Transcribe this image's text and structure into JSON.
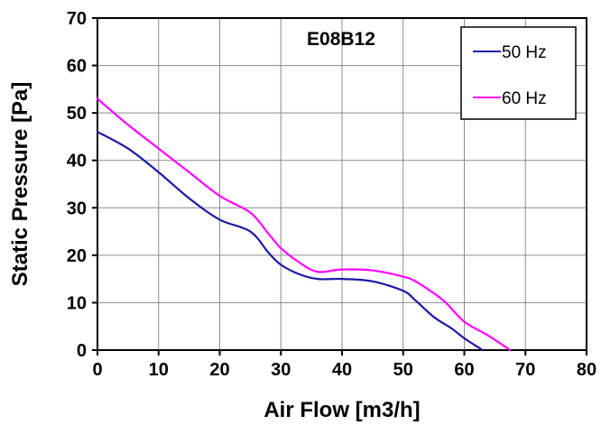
{
  "chart_data": {
    "type": "line",
    "title": "E08B12",
    "xlabel": "Air Flow [m3/h]",
    "ylabel": "Static Pressure [Pa]",
    "xlim": [
      0,
      80
    ],
    "ylim": [
      0,
      70
    ],
    "xticks": [
      "0",
      "10",
      "20",
      "30",
      "40",
      "50",
      "60",
      "70",
      "80"
    ],
    "yticks": [
      "0",
      "10",
      "20",
      "30",
      "40",
      "50",
      "60",
      "70"
    ],
    "grid": true,
    "legend_position": "top-right",
    "series": [
      {
        "name": "50 Hz",
        "color": "#1a1aa6",
        "x": [
          0,
          5,
          10,
          15,
          20,
          25,
          28,
          30,
          33,
          36,
          40,
          45,
          50,
          52,
          55,
          58,
          60,
          63
        ],
        "y": [
          46,
          42.5,
          37.5,
          32,
          27.5,
          25,
          20.5,
          18,
          16,
          15,
          15,
          14.5,
          12.5,
          10.5,
          7,
          4.5,
          2.5,
          0
        ]
      },
      {
        "name": "60 Hz",
        "color": "#ff00ff",
        "x": [
          0,
          5,
          10,
          15,
          20,
          25,
          28,
          30,
          33,
          36,
          40,
          45,
          50,
          52,
          55,
          57,
          60,
          64,
          67.5
        ],
        "y": [
          53,
          47.5,
          42.5,
          37.5,
          32.5,
          29,
          24.5,
          21.5,
          18.5,
          16.5,
          17,
          16.8,
          15.5,
          14.5,
          12,
          10,
          6,
          3,
          0
        ]
      }
    ]
  }
}
